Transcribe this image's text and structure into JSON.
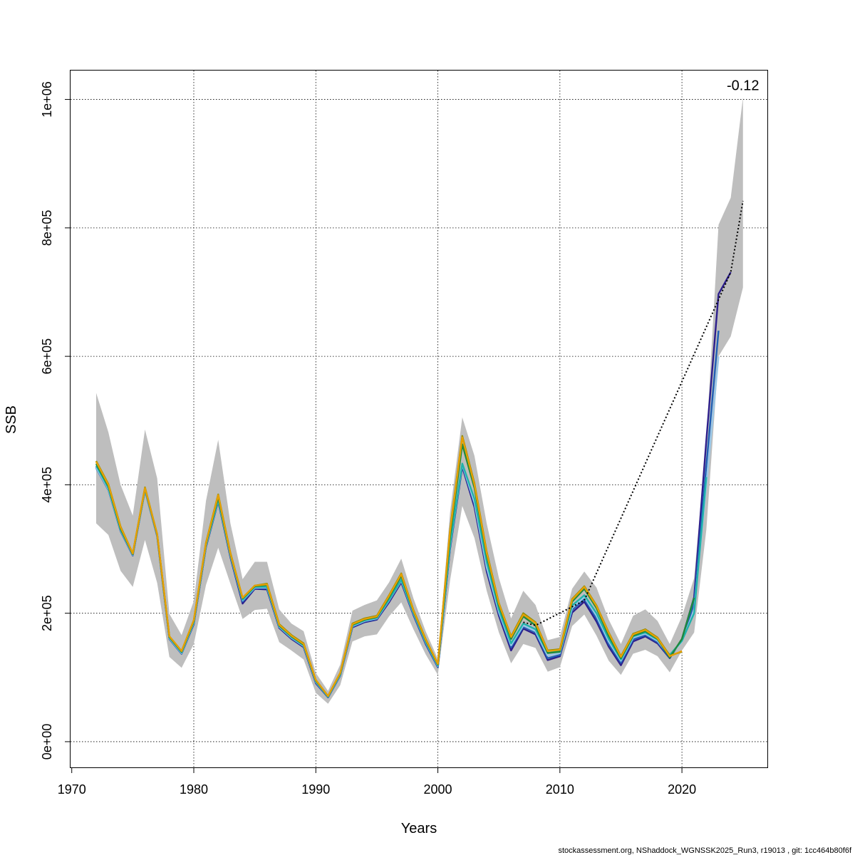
{
  "chart_data": {
    "type": "line",
    "xlabel": "Years",
    "ylabel": "SSB",
    "xlim": [
      1969.9,
      2027
    ],
    "ylim": [
      -40000,
      1045000
    ],
    "x_ticks": [
      {
        "value": 1970,
        "label": "1970"
      },
      {
        "value": 1980,
        "label": "1980"
      },
      {
        "value": 1990,
        "label": "1990"
      },
      {
        "value": 2000,
        "label": "2000"
      },
      {
        "value": 2010,
        "label": "2010"
      },
      {
        "value": 2020,
        "label": "2020"
      }
    ],
    "y_ticks": [
      {
        "value": 0,
        "label": "0e+00"
      },
      {
        "value": 200000,
        "label": "2e+05"
      },
      {
        "value": 400000,
        "label": "4e+05"
      },
      {
        "value": 600000,
        "label": "6e+05"
      },
      {
        "value": 800000,
        "label": "8e+05"
      },
      {
        "value": 1000000,
        "label": "1e+06"
      }
    ],
    "grid": true,
    "annotation": {
      "text": "-0.12",
      "x": 2025,
      "y": 1008000
    },
    "band": {
      "color": "#bebebe",
      "x": [
        1972,
        1973,
        1974,
        1975,
        1976,
        1977,
        1978,
        1979,
        1980,
        1981,
        1982,
        1983,
        1984,
        1985,
        1986,
        1987,
        1988,
        1989,
        1990,
        1991,
        1992,
        1993,
        1994,
        1995,
        1996,
        1997,
        1998,
        1999,
        2000,
        2001,
        2002,
        2003,
        2004,
        2005,
        2006,
        2007,
        2008,
        2009,
        2010,
        2011,
        2012,
        2013,
        2014,
        2015,
        2016,
        2017,
        2018,
        2019,
        2020,
        2021,
        2022,
        2023,
        2024,
        2025
      ],
      "upper": [
        543000,
        482000,
        400000,
        352000,
        486000,
        410000,
        199000,
        166000,
        219000,
        375000,
        470000,
        340000,
        253000,
        280000,
        280000,
        206000,
        184000,
        172000,
        107000,
        79000,
        120000,
        204000,
        213000,
        220000,
        248000,
        285000,
        223000,
        172000,
        129000,
        357000,
        505000,
        445000,
        340000,
        255000,
        192000,
        235000,
        213000,
        158000,
        163000,
        238000,
        265000,
        240000,
        190000,
        152000,
        196000,
        206000,
        188000,
        152000,
        195000,
        255000,
        470000,
        805000,
        847000,
        1003000
      ],
      "lower": [
        340000,
        322000,
        266000,
        241000,
        314000,
        247000,
        132000,
        115000,
        152000,
        244000,
        302000,
        246000,
        191000,
        205000,
        207000,
        155000,
        142000,
        128000,
        76000,
        59000,
        88000,
        156000,
        164000,
        167000,
        195000,
        217000,
        175000,
        136000,
        104000,
        251000,
        367000,
        317000,
        235000,
        170000,
        122000,
        152000,
        146000,
        109000,
        116000,
        180000,
        198000,
        165000,
        126000,
        104000,
        137000,
        143000,
        133000,
        108000,
        142000,
        170000,
        330000,
        600000,
        631000,
        707000
      ]
    },
    "series": [
      {
        "color": "#2d1e8c",
        "x": [
          1972,
          1973,
          1974,
          1975,
          1976,
          1977,
          1978,
          1979,
          1980,
          1981,
          1982,
          1983,
          1984,
          1985,
          1986,
          1987,
          1988,
          1989,
          1990,
          1991,
          1992,
          1993,
          1994,
          1995,
          1996,
          1997,
          1998,
          1999,
          2000,
          2001,
          2002,
          2003,
          2004,
          2005,
          2006,
          2007,
          2008,
          2009,
          2010,
          2011,
          2012,
          2013,
          2014,
          2015,
          2016,
          2017,
          2018,
          2019,
          2020,
          2021,
          2022,
          2023,
          2024
        ],
        "y": [
          428000,
          393000,
          328000,
          290000,
          392000,
          320000,
          160000,
          137000,
          183000,
          303000,
          374000,
          287000,
          215000,
          238000,
          237000,
          177000,
          160000,
          147000,
          91000,
          69000,
          103000,
          178000,
          186000,
          190000,
          217000,
          248000,
          197000,
          152000,
          116000,
          300000,
          428000,
          365000,
          265000,
          196000,
          142000,
          176000,
          167000,
          127000,
          133000,
          201000,
          218000,
          187000,
          148000,
          119000,
          156000,
          164000,
          153000,
          130000,
          160000,
          225000,
          470000,
          697000,
          731000
        ]
      },
      {
        "color": "#1f5fb5",
        "x": [
          1972,
          1973,
          1974,
          1975,
          1976,
          1977,
          1978,
          1979,
          1980,
          1981,
          1982,
          1983,
          1984,
          1985,
          1986,
          1987,
          1988,
          1989,
          1990,
          1991,
          1992,
          1993,
          1994,
          1995,
          1996,
          1997,
          1998,
          1999,
          2000,
          2001,
          2002,
          2003,
          2004,
          2005,
          2006,
          2007,
          2008,
          2009,
          2010,
          2011,
          2012,
          2013,
          2014,
          2015,
          2016,
          2017,
          2018,
          2019,
          2020,
          2021,
          2022,
          2023
        ],
        "y": [
          426000,
          392000,
          328000,
          290000,
          391000,
          320000,
          160000,
          137000,
          184000,
          304000,
          375000,
          288000,
          218000,
          239000,
          239000,
          178000,
          161000,
          148000,
          92000,
          69000,
          103000,
          179000,
          187000,
          191000,
          219000,
          250000,
          198000,
          153000,
          116000,
          302000,
          430000,
          370000,
          270000,
          200000,
          147000,
          179000,
          170000,
          130000,
          135000,
          205000,
          222000,
          192000,
          152000,
          123000,
          159000,
          166000,
          155000,
          131000,
          158000,
          215000,
          430000,
          640000
        ]
      },
      {
        "color": "#9ac8e8",
        "x": [
          1972,
          1973,
          1974,
          1975,
          1976,
          1977,
          1978,
          1979,
          1980,
          1981,
          1982,
          1983,
          1984,
          1985,
          1986,
          1987,
          1988,
          1989,
          1990,
          1991,
          1992,
          1993,
          1994,
          1995,
          1996,
          1997,
          1998,
          1999,
          2000,
          2001,
          2002,
          2003,
          2004,
          2005,
          2006,
          2007,
          2008,
          2009,
          2010,
          2011,
          2012,
          2013,
          2014,
          2015,
          2016,
          2017,
          2018,
          2019,
          2020,
          2021,
          2022,
          2023
        ],
        "y": [
          427000,
          393000,
          329000,
          291000,
          392000,
          321000,
          161000,
          138000,
          185000,
          305000,
          376000,
          290000,
          220000,
          240000,
          240000,
          179000,
          162000,
          149000,
          93000,
          70000,
          104000,
          180000,
          188000,
          192000,
          220000,
          251000,
          200000,
          155000,
          118000,
          304000,
          432000,
          372000,
          272000,
          202000,
          150000,
          181000,
          172000,
          134000,
          138000,
          208000,
          225000,
          196000,
          156000,
          126000,
          162000,
          168000,
          157000,
          133000,
          156000,
          205000,
          400000,
          600000
        ]
      },
      {
        "color": "#20b2aa",
        "x": [
          1972,
          1973,
          1974,
          1975,
          1976,
          1977,
          1978,
          1979,
          1980,
          1981,
          1982,
          1983,
          1984,
          1985,
          1986,
          1987,
          1988,
          1989,
          1990,
          1991,
          1992,
          1993,
          1994,
          1995,
          1996,
          1997,
          1998,
          1999,
          2000,
          2001,
          2002,
          2003,
          2004,
          2005,
          2006,
          2007,
          2008,
          2009,
          2010,
          2011,
          2012,
          2013,
          2014,
          2015,
          2016,
          2017,
          2018,
          2019,
          2020,
          2021,
          2022
        ],
        "y": [
          430000,
          395000,
          330000,
          292000,
          393000,
          322000,
          162000,
          139000,
          186000,
          306000,
          377000,
          291000,
          221000,
          241000,
          241000,
          180000,
          163000,
          150000,
          94000,
          70000,
          105000,
          181000,
          189000,
          193000,
          221000,
          252000,
          201000,
          156000,
          119000,
          306000,
          433000,
          378000,
          280000,
          206000,
          153000,
          184000,
          175000,
          138000,
          141000,
          212000,
          228000,
          200000,
          160000,
          128000,
          164000,
          170000,
          159000,
          135000,
          157000,
          200000,
          412000
        ]
      },
      {
        "color": "#1e8a3c",
        "x": [
          1972,
          1973,
          1974,
          1975,
          1976,
          1977,
          1978,
          1979,
          1980,
          1981,
          1982,
          1983,
          1984,
          1985,
          1986,
          1987,
          1988,
          1989,
          1990,
          1991,
          1992,
          1993,
          1994,
          1995,
          1996,
          1997,
          1998,
          1999,
          2000,
          2001,
          2002,
          2003,
          2004,
          2005,
          2006,
          2007,
          2008,
          2009,
          2010,
          2011,
          2012,
          2013,
          2014,
          2015,
          2016,
          2017,
          2018,
          2019,
          2020,
          2021
        ],
        "y": [
          433000,
          398000,
          332000,
          292000,
          394000,
          322000,
          163000,
          140000,
          188000,
          308000,
          381000,
          292000,
          223000,
          242000,
          244000,
          181000,
          164000,
          151000,
          95000,
          71000,
          106000,
          182000,
          190000,
          194000,
          225000,
          258000,
          203000,
          158000,
          120000,
          320000,
          463000,
          395000,
          290000,
          212000,
          160000,
          195000,
          181000,
          138000,
          140000,
          218000,
          238000,
          208000,
          165000,
          130000,
          165000,
          172000,
          160000,
          131000,
          160000,
          224000
        ]
      },
      {
        "color": "#8b8b00",
        "x": [
          1972,
          1973,
          1974,
          1975,
          1976,
          1977,
          1978,
          1979,
          1980,
          1981,
          1982,
          1983,
          1984,
          1985,
          1986,
          1987,
          1988,
          1989,
          1990,
          1991,
          1992,
          1993,
          1994,
          1995,
          1996,
          1997,
          1998,
          1999,
          2000,
          2001,
          2002,
          2003,
          2004,
          2005,
          2006,
          2007,
          2008,
          2009,
          2010,
          2011,
          2012,
          2013,
          2014,
          2015,
          2016,
          2017,
          2018,
          2019,
          2020
        ],
        "y": [
          437000,
          401000,
          335000,
          293000,
          396000,
          323000,
          164000,
          141000,
          189000,
          310000,
          385000,
          294000,
          224000,
          243000,
          246000,
          183000,
          166000,
          153000,
          96000,
          71000,
          107000,
          184000,
          192000,
          196000,
          228000,
          262000,
          205000,
          160000,
          121000,
          330000,
          476000,
          402000,
          296000,
          216000,
          164000,
          200000,
          186000,
          142000,
          144000,
          222000,
          242000,
          212000,
          170000,
          133000,
          168000,
          175000,
          162000,
          134000,
          140000
        ]
      },
      {
        "color": "#e69f00",
        "x": [
          1972,
          1973,
          1974,
          1975,
          1976,
          1977,
          1978,
          1979,
          1980,
          1981,
          1982,
          1983,
          1984,
          1985,
          1986,
          1987,
          1988,
          1989,
          1990,
          1991,
          1992,
          1993,
          1994,
          1995,
          1996,
          1997,
          1998,
          1999,
          2000,
          2001,
          2002,
          2003,
          2004,
          2005,
          2006,
          2007,
          2008,
          2009,
          2010,
          2011,
          2012,
          2013,
          2014,
          2015,
          2016,
          2017,
          2018,
          2019,
          2020
        ],
        "y": [
          436000,
          400000,
          334000,
          293000,
          395000,
          323000,
          164000,
          141000,
          189000,
          309000,
          384000,
          293000,
          224000,
          243000,
          245000,
          182000,
          165000,
          152000,
          96000,
          71000,
          107000,
          183000,
          191000,
          195000,
          227000,
          261000,
          204000,
          159000,
          121000,
          328000,
          474000,
          400000,
          294000,
          215000,
          163000,
          198000,
          185000,
          141000,
          143000,
          221000,
          241000,
          211000,
          169000,
          132000,
          167000,
          174000,
          161000,
          133000,
          141000
        ]
      },
      {
        "color": "#000000",
        "dashed": true,
        "x": [
          2007,
          2008,
          2011,
          2012,
          2024,
          2025
        ],
        "y": [
          186000,
          181000,
          210000,
          220000,
          731000,
          842000
        ]
      }
    ],
    "footer": "stockassessment.org, NShaddock_WGNSSK2025_Run3, r19013 , git: 1cc464b80f6f"
  }
}
